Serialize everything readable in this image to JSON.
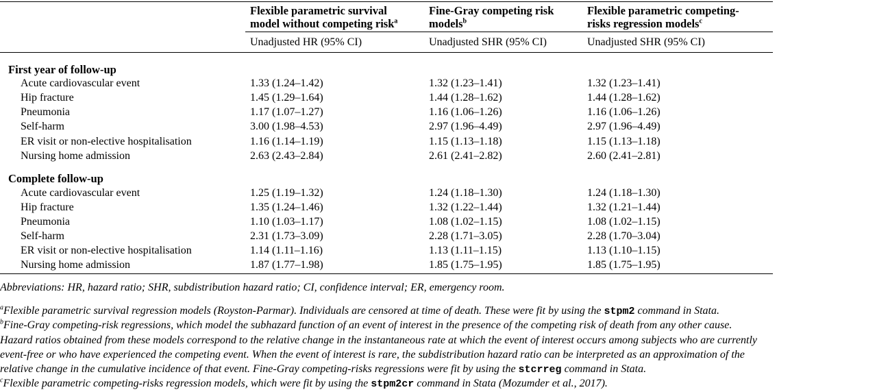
{
  "header": {
    "col1_title": "Flexible parametric survival model without competing risk",
    "col1_title_line1": "Flexible parametric survival",
    "col1_title_line2": "model without competing risk",
    "col1_sup": "a",
    "col2_title_line1": "Fine-Gray competing risk",
    "col2_title_line2": "models",
    "col2_sup": "b",
    "col3_title_line1": "Flexible parametric competing-",
    "col3_title_line2": "risks regression models",
    "col3_sup": "c",
    "col1_sub": "Unadjusted HR (95% CI)",
    "col2_sub": "Unadjusted SHR (95% CI)",
    "col3_sub": "Unadjusted SHR (95% CI)"
  },
  "sections": [
    {
      "title": "First year of follow-up",
      "rows": [
        {
          "label": "Acute cardiovascular event",
          "c1": "1.33 (1.24–1.42)",
          "c2": "1.32 (1.23–1.41)",
          "c3": "1.32 (1.23–1.41)"
        },
        {
          "label": "Hip fracture",
          "c1": "1.45 (1.29–1.64)",
          "c2": "1.44 (1.28–1.62)",
          "c3": "1.44 (1.28–1.62)"
        },
        {
          "label": "Pneumonia",
          "c1": "1.17 (1.07–1.27)",
          "c2": "1.16 (1.06–1.26)",
          "c3": "1.16 (1.06–1.26)"
        },
        {
          "label": "Self-harm",
          "c1": "3.00 (1.98–4.53)",
          "c2": "2.97 (1.96–4.49)",
          "c3": "2.97 (1.96–4.49)"
        },
        {
          "label": "ER visit or non-elective hospitalisation",
          "c1": "1.16 (1.14–1.19)",
          "c2": "1.15 (1.13–1.18)",
          "c3": "1.15 (1.13–1.18)"
        },
        {
          "label": "Nursing home admission",
          "c1": "2.63 (2.43–2.84)",
          "c2": "2.61 (2.41–2.82)",
          "c3": "2.60 (2.41–2.81)"
        }
      ]
    },
    {
      "title": "Complete follow-up",
      "rows": [
        {
          "label": "Acute cardiovascular event",
          "c1": "1.25 (1.19–1.32)",
          "c2": "1.24 (1.18–1.30)",
          "c3": "1.24 (1.18–1.30)"
        },
        {
          "label": "Hip fracture",
          "c1": "1.35 (1.24–1.46)",
          "c2": "1.32 (1.22–1.44)",
          "c3": "1.32 (1.21–1.44)"
        },
        {
          "label": "Pneumonia",
          "c1": "1.10 (1.03–1.17)",
          "c2": "1.08 (1.02–1.15)",
          "c3": "1.08 (1.02–1.15)"
        },
        {
          "label": "Self-harm",
          "c1": "2.31 (1.73–3.09)",
          "c2": "2.28 (1.71–3.05)",
          "c3": "2.28 (1.70–3.04)"
        },
        {
          "label": "ER visit or non-elective hospitalisation",
          "c1": "1.14 (1.11–1.16)",
          "c2": "1.13 (1.11–1.15)",
          "c3": "1.13 (1.10–1.15)"
        },
        {
          "label": "Nursing home admission",
          "c1": "1.87 (1.77–1.98)",
          "c2": "1.85 (1.75–1.95)",
          "c3": "1.85 (1.75–1.95)"
        }
      ]
    }
  ],
  "footnotes": {
    "abbreviations": "Abbreviations: HR, hazard ratio; SHR, subdistribution hazard ratio; CI, confidence interval; ER, emergency room.",
    "a_sup": "a",
    "a_pre": "Flexible parametric survival regression models (Royston-Parmar). Individuals are censored at time of death. These were fit by using the ",
    "a_cmd": "stpm2",
    "a_post": " command in Stata.",
    "b_sup": "b",
    "b_line1": "Fine-Gray competing-risk regressions, which model the subhazard function of an event of interest in the presence of the competing risk of death from any other cause.",
    "b_line2": "Hazard ratios obtained from these models correspond to the relative change in the instantaneous rate at which the event of interest occurs among subjects who are currently",
    "b_line3": "event-free or who have experienced the competing event. When the event of interest is rare, the subdistribution hazard ratio can be interpreted as an approximation of the",
    "b_line4_pre": "relative change in the cumulative incidence of that event. Fine-Gray competing-risks regressions were fit by using the ",
    "b_cmd": "stcrreg",
    "b_line4_post": " command in Stata.",
    "c_sup": "c",
    "c_pre": "Flexible parametric competing-risks regression models, which were fit by using the ",
    "c_cmd": "stpm2cr",
    "c_post": " command in Stata (Mozumder et al., 2017)."
  }
}
